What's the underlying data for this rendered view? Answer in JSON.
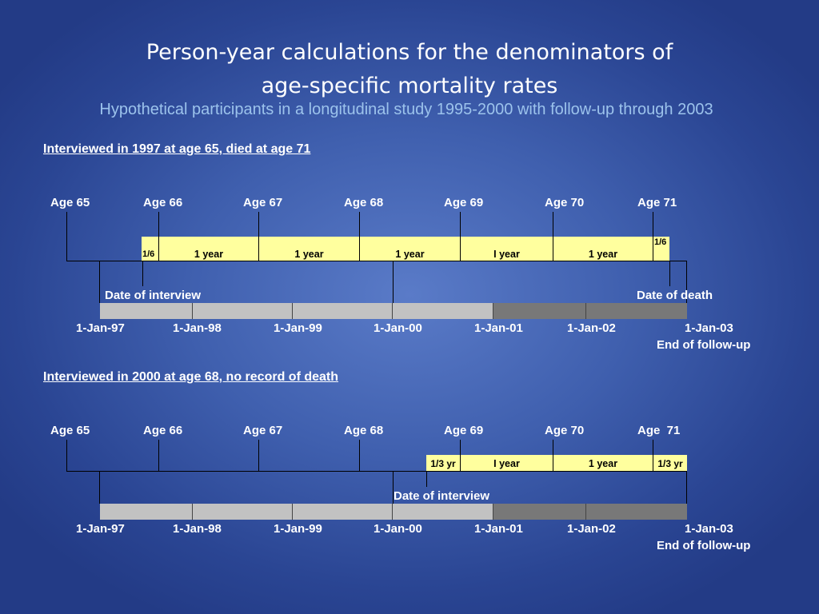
{
  "title_line1": "Person-year calculations for the denominators of",
  "title_line2": "age-specific mortality rates",
  "subtitle": "Hypothetical participants in a longitudinal study 1995-2000 with follow-up through 2003",
  "case1": {
    "heading": "Interviewed in 1997 at age 65, died at age 71",
    "ages": [
      "Age 65",
      "Age 66",
      "Age 67",
      "Age 68",
      "Age 69",
      "Age 70",
      "Age 71"
    ],
    "segments": [
      "1/6",
      "1 year",
      "1 year",
      "1 year",
      "I year",
      "1 year",
      "1/6"
    ],
    "interview_label": "Date of interview",
    "death_label": "Date of death",
    "dates": [
      "1-Jan-97",
      "1-Jan-98",
      "1-Jan-99",
      "1-Jan-00",
      "1-Jan-01",
      "1-Jan-02",
      "1-Jan-03"
    ],
    "end_label": "End of follow-up"
  },
  "case2": {
    "heading": "Interviewed in 2000 at age 68, no record of death",
    "ages": [
      "Age 65",
      "Age 66",
      "Age 67",
      "Age 68",
      "Age 69",
      "Age 70",
      "Age  71"
    ],
    "segments": [
      "1/3 yr",
      "I year",
      "1 year",
      "1/3 yr"
    ],
    "interview_label": "Date of interview",
    "dates": [
      "1-Jan-97",
      "1-Jan-98",
      "1-Jan-99",
      "1-Jan-00",
      "1-Jan-01",
      "1-Jan-02",
      "1-Jan-03"
    ],
    "end_label": "End of follow-up"
  },
  "colors": {
    "background": "#3f5fae",
    "subtitle": "#9cc3ec",
    "age_segment": "#ffff9e",
    "study_period": "#c2c2c2",
    "follow_up_period": "#787878"
  }
}
